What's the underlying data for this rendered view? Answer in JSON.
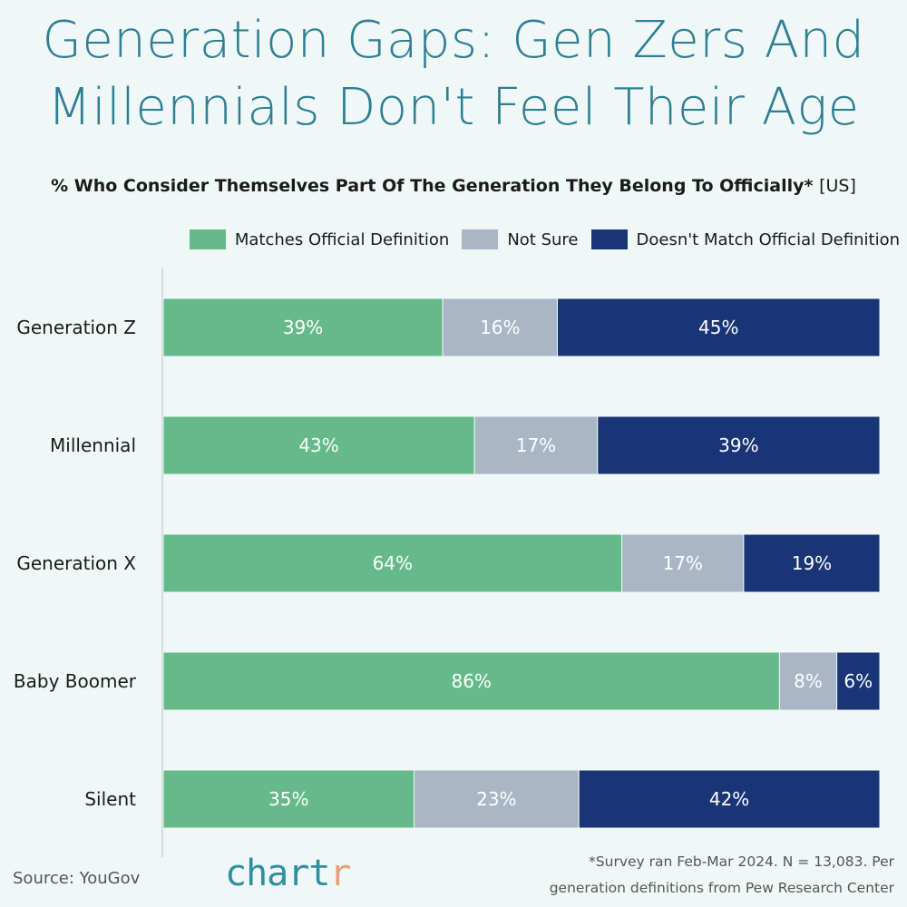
{
  "title_lines": [
    "Generation Gaps: Gen Zers And",
    "Millennials Don't Feel Their Age"
  ],
  "subtitle": "% Who Consider Themselves Part Of The Generation They Belong To Officially*",
  "subtitle_region": "[US]",
  "source": "Source: YouGov",
  "logo": {
    "main": "chart",
    "accent": "r"
  },
  "footnote_lines": [
    "*Survey ran Feb-Mar 2024. N = 13,083. Per",
    "generation definitions from Pew Research Center"
  ],
  "chart_data": {
    "type": "bar",
    "orientation": "horizontal",
    "stacked": true,
    "categories": [
      "Generation Z",
      "Millennial",
      "Generation X",
      "Baby Boomer",
      "Silent"
    ],
    "series": [
      {
        "name": "Matches Official Definition",
        "color": "#66b988",
        "values": [
          39,
          43,
          64,
          86,
          35
        ]
      },
      {
        "name": "Not Sure",
        "color": "#a9b6c6",
        "values": [
          16,
          17,
          17,
          8,
          23
        ]
      },
      {
        "name": "Doesn't Match Official Definition",
        "color": "#1a3576",
        "values": [
          45,
          39,
          19,
          6,
          42
        ]
      }
    ],
    "value_suffix": "%",
    "legend_position": "top-right",
    "grid": false
  }
}
